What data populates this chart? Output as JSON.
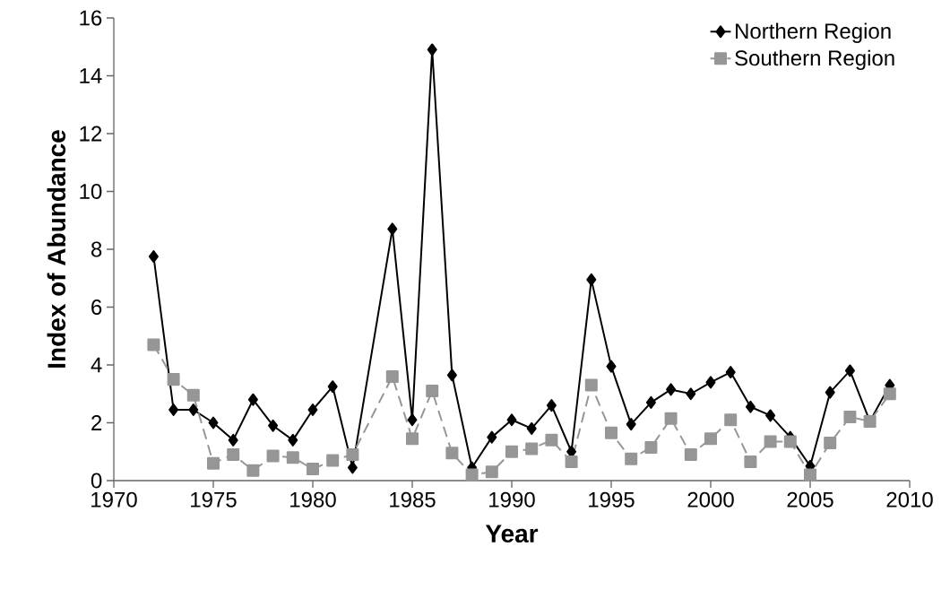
{
  "chart_data": {
    "type": "line",
    "xlabel": "Year",
    "ylabel": "Index of Abundance",
    "xlim": [
      1970,
      2010
    ],
    "xticks": [
      1970,
      1975,
      1980,
      1985,
      1990,
      1995,
      2000,
      2005,
      2010
    ],
    "ylim": [
      0,
      16
    ],
    "yticks": [
      0,
      2,
      4,
      6,
      8,
      10,
      12,
      14,
      16
    ],
    "grid": false,
    "legend": "top right",
    "series": [
      {
        "name": "Northern Region",
        "color": "#000000",
        "marker": "diamond",
        "line_style": "solid",
        "x": [
          1972,
          1973,
          1974,
          1975,
          1976,
          1977,
          1978,
          1979,
          1980,
          1981,
          1982,
          1984,
          1985,
          1986,
          1987,
          1988,
          1989,
          1990,
          1991,
          1992,
          1993,
          1994,
          1995,
          1996,
          1997,
          1998,
          1999,
          2000,
          2001,
          2002,
          2003,
          2004,
          2005,
          2006,
          2007,
          2008,
          2009
        ],
        "values": [
          7.75,
          2.45,
          2.45,
          2.0,
          1.4,
          2.8,
          1.9,
          1.4,
          2.45,
          3.25,
          0.45,
          8.7,
          2.1,
          14.9,
          3.65,
          0.45,
          1.5,
          2.1,
          1.8,
          2.6,
          1.0,
          6.95,
          3.95,
          1.95,
          2.7,
          3.15,
          3.0,
          3.4,
          3.75,
          2.55,
          2.25,
          1.5,
          0.5,
          3.05,
          3.8,
          2.05,
          3.3
        ]
      },
      {
        "name": "Southern Region",
        "color": "#969696",
        "marker": "square",
        "line_style": "dashed",
        "x": [
          1972,
          1973,
          1974,
          1975,
          1976,
          1977,
          1978,
          1979,
          1980,
          1981,
          1982,
          1984,
          1985,
          1986,
          1987,
          1988,
          1989,
          1990,
          1991,
          1992,
          1993,
          1994,
          1995,
          1996,
          1997,
          1998,
          1999,
          2000,
          2001,
          2002,
          2003,
          2004,
          2005,
          2006,
          2007,
          2008,
          2009
        ],
        "values": [
          4.7,
          3.5,
          2.95,
          0.6,
          0.9,
          0.35,
          0.85,
          0.8,
          0.4,
          0.7,
          0.9,
          3.6,
          1.45,
          3.1,
          0.95,
          0.2,
          0.3,
          1.0,
          1.1,
          1.4,
          0.65,
          3.3,
          1.65,
          0.75,
          1.15,
          2.15,
          0.9,
          1.45,
          2.1,
          0.65,
          1.35,
          1.35,
          0.2,
          1.3,
          2.2,
          2.05,
          3.0
        ]
      }
    ]
  }
}
